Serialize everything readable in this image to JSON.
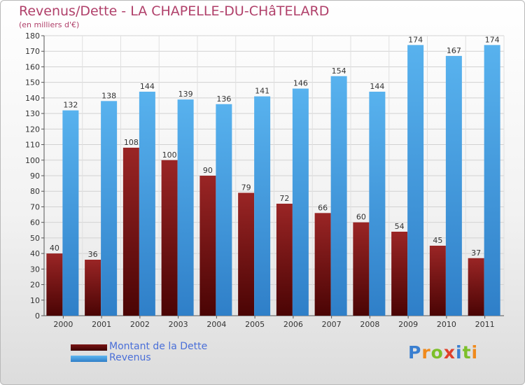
{
  "header": {
    "title": "Revenus/Dette - LA CHAPELLE-DU-CHâTELARD",
    "subtitle": "(en milliers d'€)"
  },
  "chart_data": {
    "type": "bar",
    "title": "Revenus/Dette - LA CHAPELLE-DU-CHâTELARD",
    "ylabel": "(en milliers d'€)",
    "xlabel": "",
    "categories": [
      "2000",
      "2001",
      "2002",
      "2003",
      "2004",
      "2005",
      "2006",
      "2007",
      "2008",
      "2009",
      "2010",
      "2011"
    ],
    "series": [
      {
        "name": "Montant de la Dette",
        "color": "#7a1414",
        "values": [
          40,
          36,
          108,
          100,
          90,
          79,
          72,
          66,
          60,
          54,
          45,
          37
        ]
      },
      {
        "name": "Revenus",
        "color": "#4ea6e4",
        "values": [
          132,
          138,
          144,
          139,
          136,
          141,
          146,
          154,
          144,
          174,
          167,
          174
        ]
      }
    ],
    "ylim": [
      0,
      180
    ],
    "yticks": [
      0,
      10,
      20,
      30,
      40,
      50,
      60,
      70,
      80,
      90,
      100,
      110,
      120,
      130,
      140,
      150,
      160,
      170,
      180
    ],
    "grid": true,
    "legend": "bottom-left"
  },
  "legend": {
    "items": [
      {
        "label": "Montant de la Dette",
        "color": "#5a0a0a"
      },
      {
        "label": "Revenus",
        "color": "#4ea6e4"
      }
    ]
  },
  "logo": {
    "letters": [
      {
        "ch": "P",
        "color": "#3a7fd0"
      },
      {
        "ch": "r",
        "color": "#f08a1c"
      },
      {
        "ch": "o",
        "color": "#7cbf2a"
      },
      {
        "ch": "x",
        "color": "#e0402a"
      },
      {
        "ch": "i",
        "color": "#3a7fd0"
      },
      {
        "ch": "t",
        "color": "#7cbf2a"
      },
      {
        "ch": "i",
        "color": "#f08a1c"
      }
    ]
  }
}
